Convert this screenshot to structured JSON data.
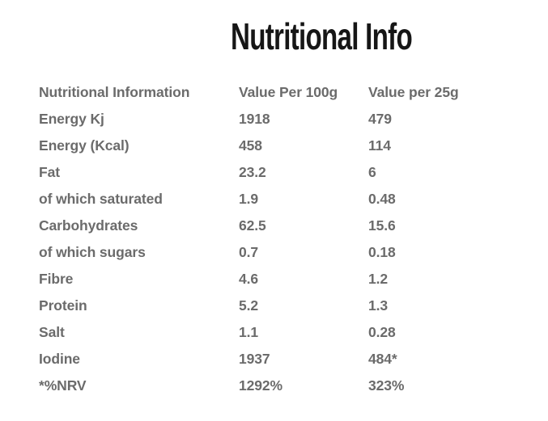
{
  "title": "Nutritional Info",
  "table": {
    "headers": {
      "label": "Nutritional Information",
      "per100g": "Value Per 100g",
      "per25g": "Value per 25g"
    },
    "rows": [
      {
        "label": "Energy Kj",
        "per100g": "1918",
        "per25g": "479"
      },
      {
        "label": "Energy (Kcal)",
        "per100g": "458",
        "per25g": "114"
      },
      {
        "label": "Fat",
        "per100g": "23.2",
        "per25g": "6"
      },
      {
        "label": "of which saturated",
        "per100g": "1.9",
        "per25g": "0.48"
      },
      {
        "label": "Carbohydrates",
        "per100g": "62.5",
        "per25g": "15.6"
      },
      {
        "label": "of which sugars",
        "per100g": "0.7",
        "per25g": "0.18"
      },
      {
        "label": "Fibre",
        "per100g": "4.6",
        "per25g": "1.2"
      },
      {
        "label": "Protein",
        "per100g": "5.2",
        "per25g": "1.3"
      },
      {
        "label": "Salt",
        "per100g": "1.1",
        "per25g": "0.28"
      },
      {
        "label": "Iodine",
        "per100g": "1937",
        "per25g": "484*"
      },
      {
        "label": "*%NRV",
        "per100g": "1292%",
        "per25g": "323%"
      }
    ]
  },
  "colors": {
    "background": "#ffffff",
    "title_text": "#161616",
    "table_text": "#6b6b6b"
  }
}
